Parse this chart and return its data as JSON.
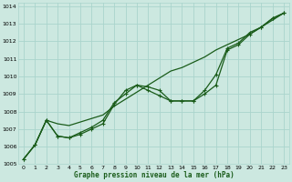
{
  "title": "Graphe pression niveau de la mer (hPa)",
  "bg_color": "#cce8e0",
  "grid_color": "#aad4cc",
  "line_color": "#1a5c1a",
  "xlim": [
    -0.5,
    23.5
  ],
  "ylim": [
    1005.0,
    1014.2
  ],
  "yticks": [
    1005,
    1006,
    1007,
    1008,
    1009,
    1010,
    1011,
    1012,
    1013,
    1014
  ],
  "xticks": [
    0,
    1,
    2,
    3,
    4,
    5,
    6,
    7,
    8,
    9,
    10,
    11,
    12,
    13,
    14,
    15,
    16,
    17,
    18,
    19,
    20,
    21,
    22,
    23
  ],
  "series_straight_x": [
    0,
    1,
    2,
    3,
    4,
    5,
    6,
    7,
    8,
    9,
    10,
    11,
    12,
    13,
    14,
    15,
    16,
    17,
    18,
    19,
    20,
    21,
    22,
    23
  ],
  "series_straight_y": [
    1005.3,
    1006.1,
    1007.5,
    1007.3,
    1007.2,
    1007.4,
    1007.6,
    1007.8,
    1008.3,
    1008.7,
    1009.1,
    1009.5,
    1009.9,
    1010.3,
    1010.5,
    1010.8,
    1011.1,
    1011.5,
    1011.8,
    1012.1,
    1012.4,
    1012.8,
    1013.2,
    1013.6
  ],
  "series_wave_x": [
    0,
    1,
    2,
    3,
    4,
    5,
    6,
    7,
    8,
    9,
    10,
    11,
    12,
    13,
    14,
    15,
    16,
    17,
    18,
    19,
    20,
    21,
    22,
    23
  ],
  "series_wave_y": [
    1005.3,
    1006.1,
    1007.5,
    1006.6,
    1006.5,
    1006.7,
    1007.0,
    1007.3,
    1008.4,
    1009.2,
    1009.5,
    1009.4,
    1009.2,
    1008.6,
    1008.6,
    1008.6,
    1009.0,
    1009.5,
    1011.5,
    1011.8,
    1012.4,
    1012.8,
    1013.3,
    1013.6
  ],
  "series_mid_x": [
    0,
    1,
    2,
    3,
    4,
    5,
    6,
    7,
    8,
    9,
    10,
    11,
    12,
    13,
    14,
    15,
    16,
    17,
    18,
    19,
    20,
    21,
    22,
    23
  ],
  "series_mid_y": [
    1005.3,
    1006.1,
    1007.5,
    1006.6,
    1006.5,
    1006.8,
    1007.1,
    1007.5,
    1008.5,
    1009.0,
    1009.5,
    1009.2,
    1008.9,
    1008.6,
    1008.6,
    1008.6,
    1009.2,
    1010.1,
    1011.6,
    1011.9,
    1012.5,
    1012.8,
    1013.3,
    1013.6
  ]
}
